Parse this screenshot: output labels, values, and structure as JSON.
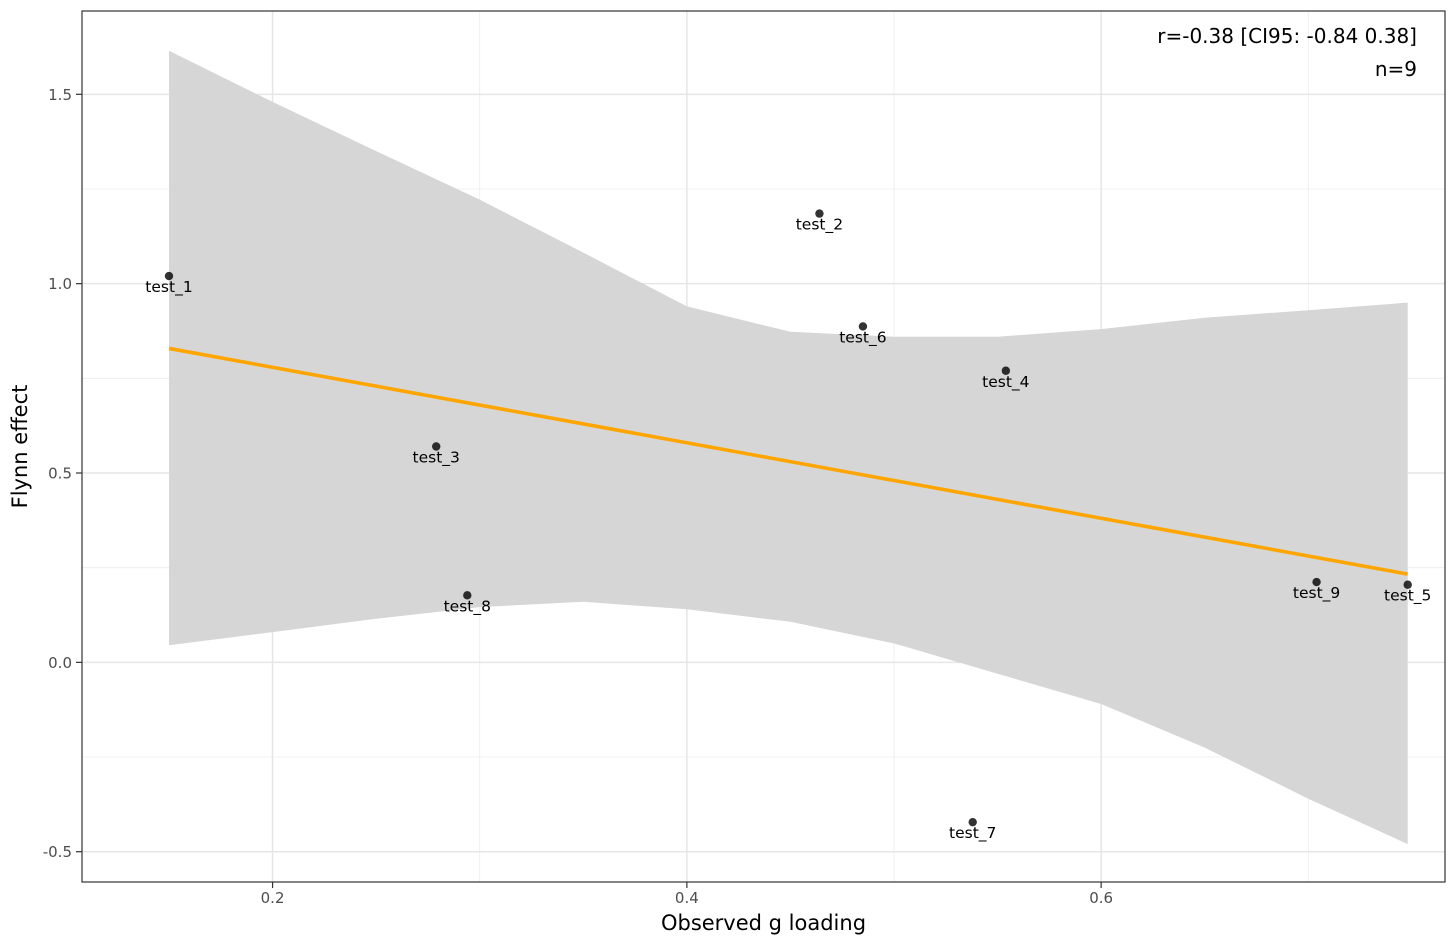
{
  "chart_data": {
    "type": "scatter",
    "xlabel": "Observed g loading",
    "ylabel": "Flynn effect",
    "xlim": [
      0.108,
      0.766
    ],
    "ylim": [
      -0.58,
      1.72
    ],
    "x_ticks": [
      0.2,
      0.4,
      0.6
    ],
    "x_tick_labels": [
      "0.2",
      "0.4",
      "0.6"
    ],
    "y_ticks": [
      -0.5,
      0.0,
      0.5,
      1.0,
      1.5
    ],
    "y_tick_labels": [
      "-0.5",
      "0.0",
      "0.5",
      "1.0",
      "1.5"
    ],
    "points": [
      {
        "label": "test_1",
        "x": 0.15,
        "y": 1.02
      },
      {
        "label": "test_2",
        "x": 0.464,
        "y": 1.185
      },
      {
        "label": "test_3",
        "x": 0.279,
        "y": 0.57
      },
      {
        "label": "test_4",
        "x": 0.554,
        "y": 0.77
      },
      {
        "label": "test_5",
        "x": 0.748,
        "y": 0.205
      },
      {
        "label": "test_6",
        "x": 0.485,
        "y": 0.887
      },
      {
        "label": "test_7",
        "x": 0.538,
        "y": -0.422
      },
      {
        "label": "test_8",
        "x": 0.294,
        "y": 0.177
      },
      {
        "label": "test_9",
        "x": 0.704,
        "y": 0.212
      }
    ],
    "fit_line": {
      "x": [
        0.15,
        0.748
      ],
      "y": [
        0.829,
        0.233
      ],
      "color": "#ffa500"
    },
    "confidence_band": {
      "x": [
        0.15,
        0.2,
        0.25,
        0.3,
        0.35,
        0.4,
        0.45,
        0.5,
        0.55,
        0.6,
        0.65,
        0.7,
        0.748
      ],
      "upper": [
        1.615,
        1.48,
        1.35,
        1.222,
        1.082,
        0.94,
        0.873,
        0.86,
        0.86,
        0.88,
        0.91,
        0.93,
        0.95
      ],
      "lower": [
        0.045,
        0.08,
        0.115,
        0.146,
        0.16,
        0.14,
        0.107,
        0.05,
        -0.03,
        -0.11,
        -0.225,
        -0.36,
        -0.48
      ],
      "color": "#d6d6d6"
    },
    "annotations": [
      "r=-0.38 [CI95: -0.84 0.38]",
      "n=9"
    ],
    "point_color": "#000000",
    "grid": true
  }
}
